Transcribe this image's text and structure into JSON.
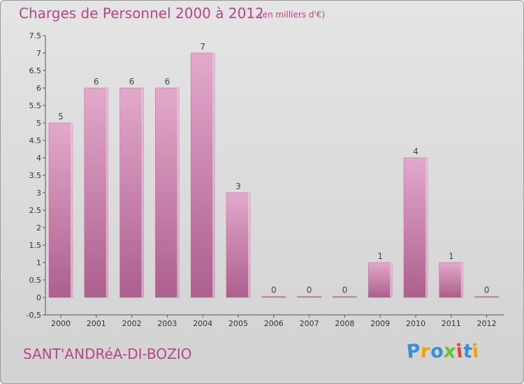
{
  "chart_data": {
    "type": "bar",
    "title": "Charges de Personnel 2000 à 2012",
    "subtitle": "(en milliers d'€)",
    "xlabel": "",
    "ylabel": "",
    "categories": [
      "2000",
      "2001",
      "2002",
      "2003",
      "2004",
      "2005",
      "2006",
      "2007",
      "2008",
      "2009",
      "2010",
      "2011",
      "2012"
    ],
    "values": [
      5,
      6,
      6,
      6,
      7,
      3,
      0,
      0,
      0,
      1,
      4,
      1,
      0
    ],
    "data_labels": [
      "5",
      "6",
      "6",
      "6",
      "7",
      "3",
      "0",
      "0",
      "0",
      "1",
      "4",
      "1",
      "0"
    ],
    "y_ticks": [
      "-0,5",
      "0",
      "0.5",
      "1",
      "1.5",
      "2",
      "2.5",
      "3",
      "3.5",
      "4",
      "4.5",
      "5",
      "5.5",
      "6",
      "6.5",
      "7",
      "7.5"
    ],
    "ylim": [
      -0.5,
      7.5
    ],
    "grid": false,
    "colors": {
      "bar": "#c97aa8",
      "bar_light": "#e2a9cb",
      "bar_dark": "#ad5f8d",
      "text": "#bb4488",
      "axis": "#555555"
    }
  },
  "footer": {
    "commune": "SANT'ANDRéA-DI-BOZIO"
  },
  "logo": {
    "letters": [
      "P",
      "r",
      "o",
      "x",
      "i",
      "t",
      "i"
    ],
    "colors": [
      "#3b8fd6",
      "#f5a300",
      "#3b8fd6",
      "#6cbf2a",
      "#e8412e",
      "#3b8fd6",
      "#f5a300"
    ]
  }
}
